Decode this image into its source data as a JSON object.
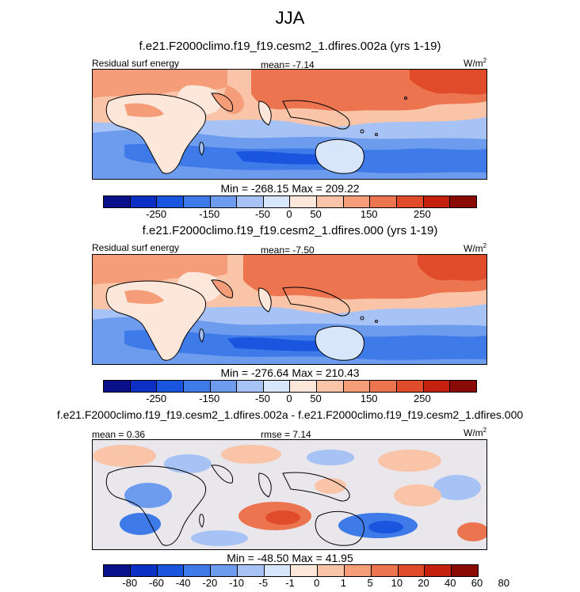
{
  "figure": {
    "season": "JJA",
    "units": "W/m",
    "units_sup": "2",
    "field_label": "Residual surf energy"
  },
  "panels": [
    {
      "title": "f.e21.F2000climo.f19_f19.cesm2_1.dfires.002a (yrs 1-19)",
      "mean_text": "mean=  -7.14",
      "minmax_text": "Min = -268.15 Max = 209.22"
    },
    {
      "title": "f.e21.F2000climo.f19_f19.cesm2_1.dfires.000 (yrs 1-19)",
      "mean_text": "mean=  -7.50",
      "minmax_text": "Min = -276.64 Max = 210.43"
    },
    {
      "title": "f.e21.F2000climo.f19_f19.cesm2_1.dfires.002a - f.e21.F2000climo.f19_f19.cesm2_1.dfires.000",
      "mean_text": "mean =   0.36",
      "rmse_text": "rmse =   7.14",
      "minmax_text": "Min = -48.50 Max = 41.95"
    }
  ],
  "colorbars": {
    "abs": {
      "colors": [
        "#08108a",
        "#0c2fc4",
        "#1a55e0",
        "#3e7ae8",
        "#6d9cef",
        "#a7c3f5",
        "#d8e6fb",
        "#fde7da",
        "#f9c4a8",
        "#f49d78",
        "#ec744f",
        "#e04b2a",
        "#c4220f",
        "#8a0a05"
      ],
      "tick_labels": [
        "-250",
        "-150",
        "-50",
        "0",
        "50",
        "150",
        "250"
      ]
    },
    "diff": {
      "colors": [
        "#08108a",
        "#0c2fc4",
        "#1a55e0",
        "#3e7ae8",
        "#6d9cef",
        "#a7c3f5",
        "#d8e6fb",
        "#fde7da",
        "#f9c4a8",
        "#f49d78",
        "#ec744f",
        "#e04b2a",
        "#c4220f",
        "#8a0a05"
      ],
      "tick_labels": [
        "-80",
        "-60",
        "-40",
        "-20",
        "-10",
        "-5",
        "-1",
        "0",
        "1",
        "5",
        "10",
        "20",
        "40",
        "60",
        "80"
      ]
    }
  }
}
